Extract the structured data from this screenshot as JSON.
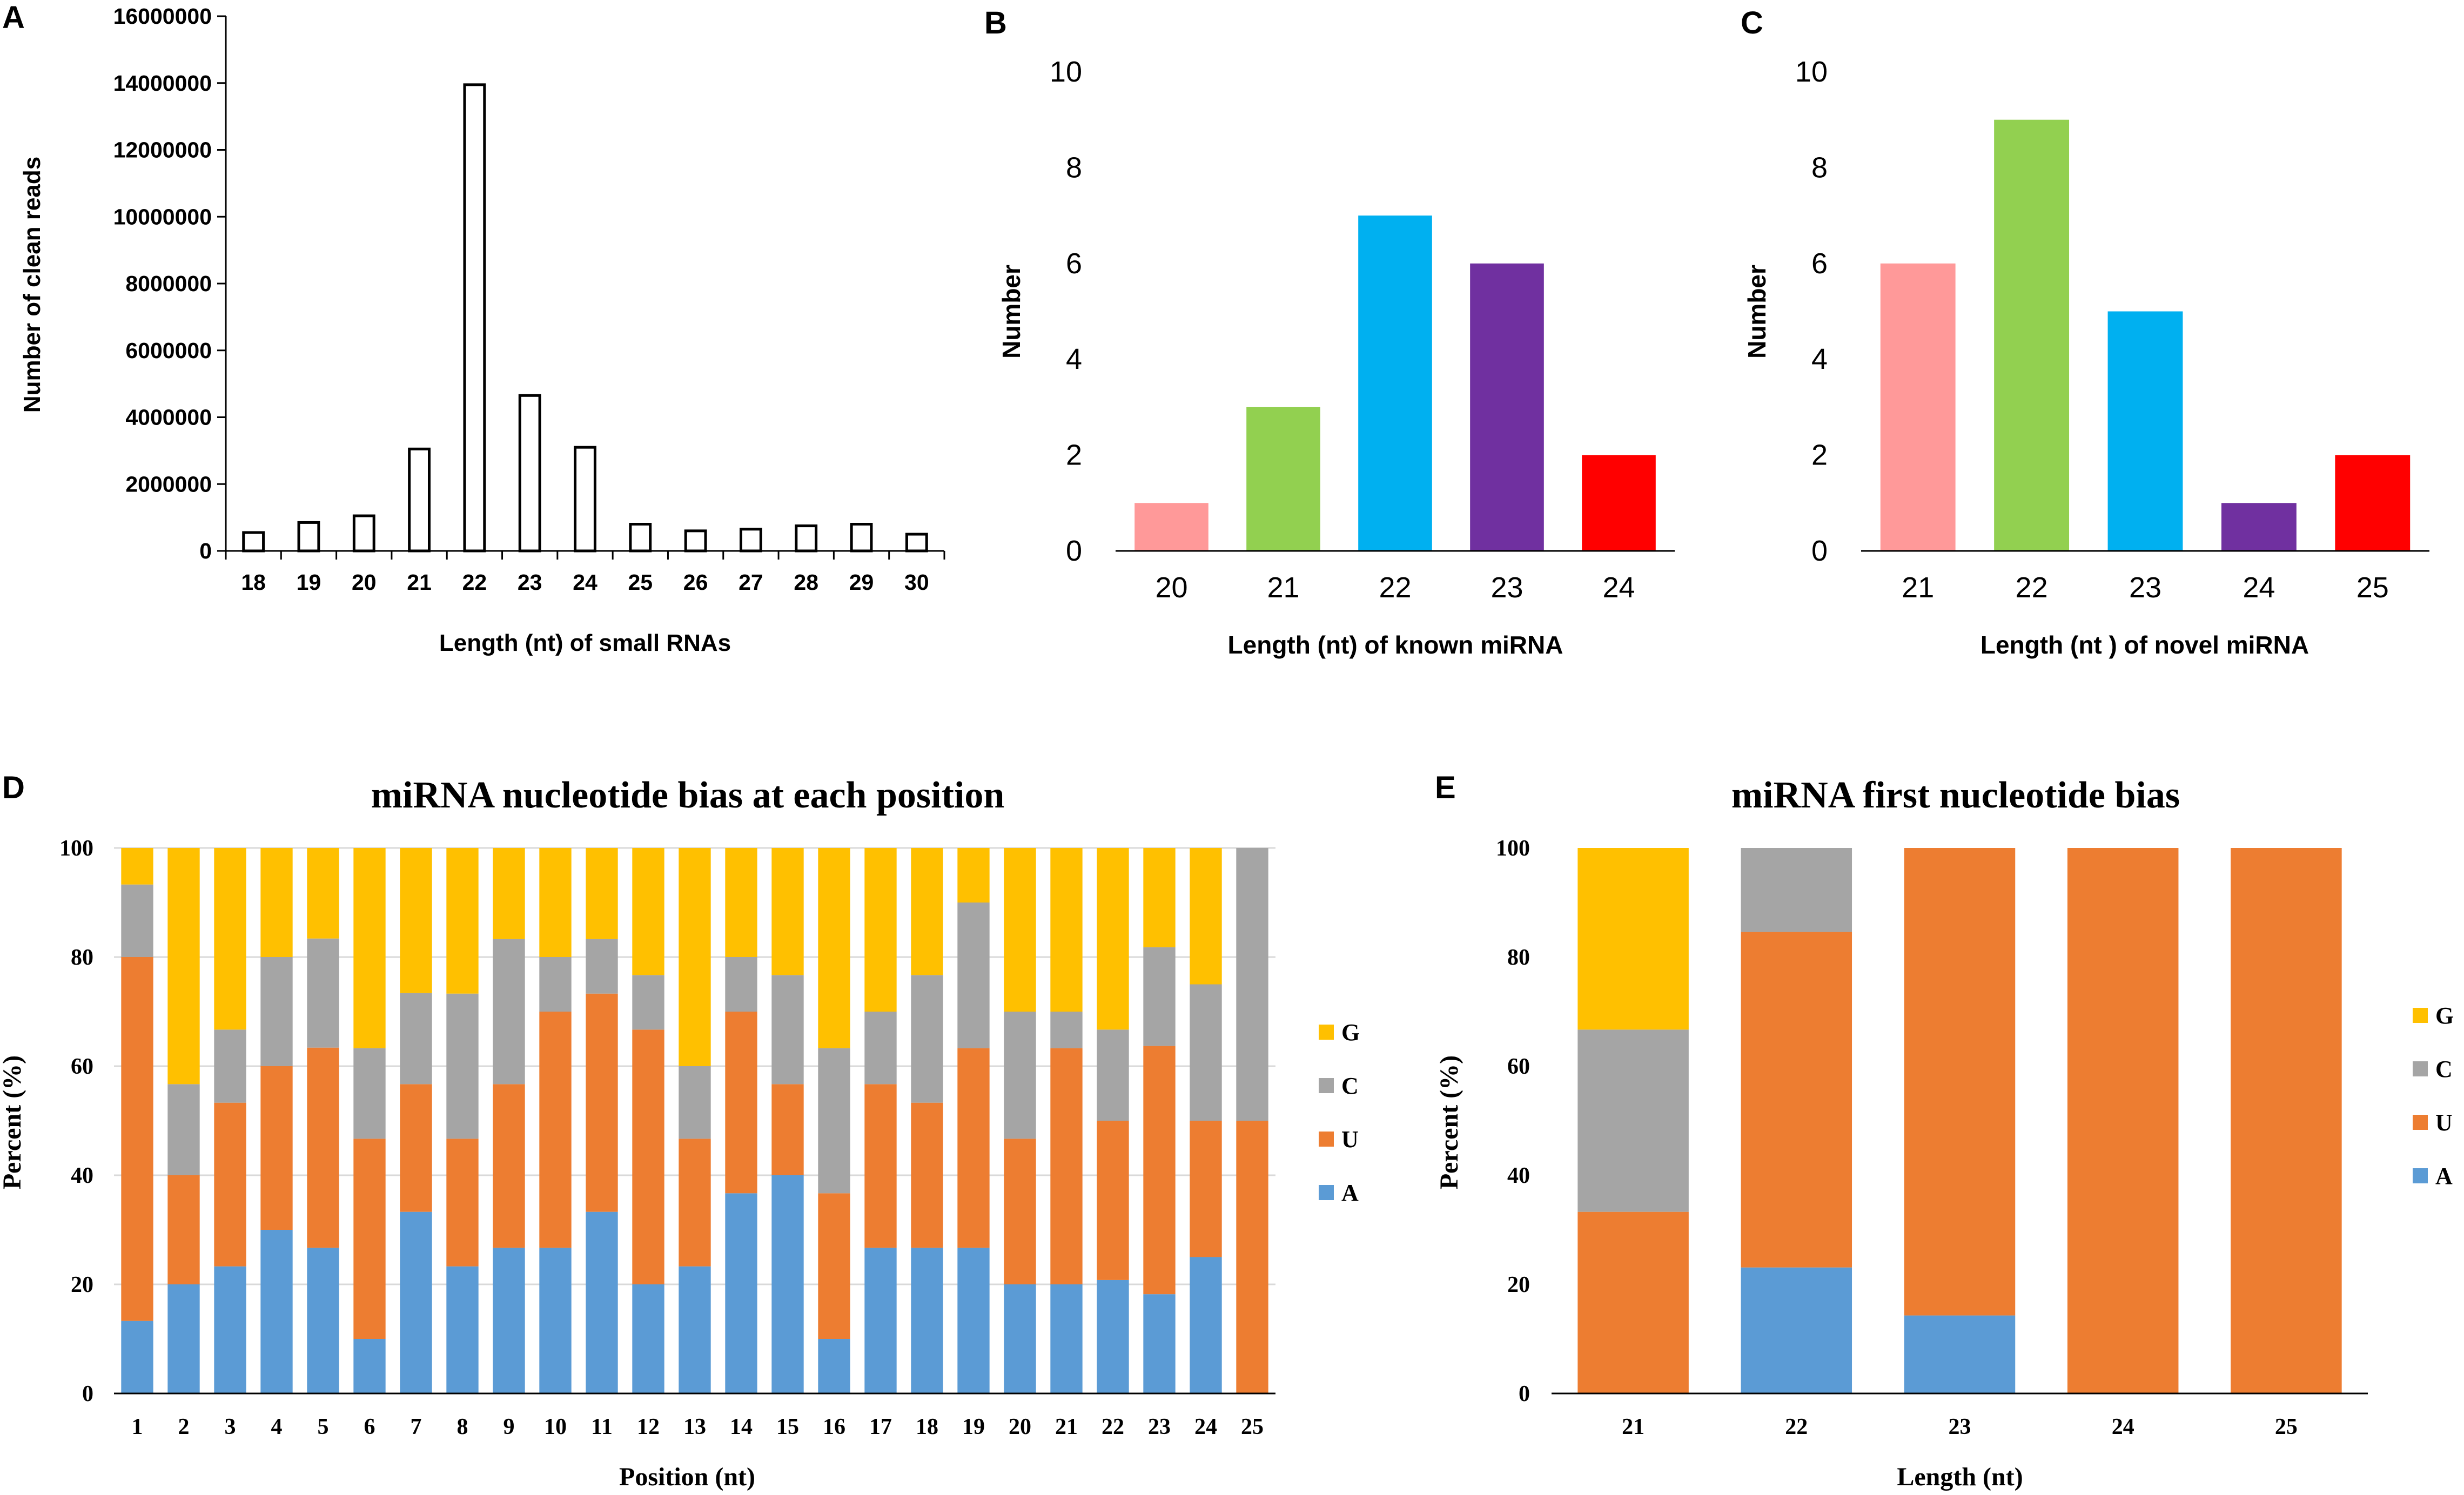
{
  "colors": {
    "pink": "#FF9999",
    "green": "#92D050",
    "cyan": "#00B0F0",
    "purple": "#7030A0",
    "red": "#FF0000",
    "nuc_G": "#FFC000",
    "nuc_C": "#A5A5A5",
    "nuc_U": "#ED7D31",
    "nuc_A": "#5B9BD5",
    "axis": "#000000",
    "grid": "#D9D9D9"
  },
  "panel_labels": [
    "A",
    "B",
    "C",
    "D",
    "E"
  ],
  "chart_data": [
    {
      "id": "A",
      "type": "bar",
      "style": "hollow",
      "title": "",
      "categories": [
        "18",
        "19",
        "20",
        "21",
        "22",
        "23",
        "24",
        "25",
        "26",
        "27",
        "28",
        "29",
        "30"
      ],
      "values": [
        550000,
        850000,
        1050000,
        3050000,
        13950000,
        4650000,
        3100000,
        800000,
        600000,
        650000,
        750000,
        800000,
        500000
      ],
      "ylim": [
        0,
        16000000
      ],
      "yticks": [
        "0",
        "2000000",
        "4000000",
        "6000000",
        "8000000",
        "10000000",
        "12000000",
        "14000000",
        "16000000"
      ],
      "xlabel": "Length (nt) of small RNAs",
      "ylabel": "Number of clean reads"
    },
    {
      "id": "B",
      "type": "bar",
      "title": "",
      "categories": [
        "20",
        "21",
        "22",
        "23",
        "24"
      ],
      "values": [
        1,
        3,
        7,
        6,
        2
      ],
      "bar_colors": [
        "pink",
        "green",
        "cyan",
        "purple",
        "red"
      ],
      "ylim": [
        0,
        10
      ],
      "yticks": [
        "0",
        "2",
        "4",
        "6",
        "8",
        "10"
      ],
      "xlabel": "Length (nt) of known miRNA",
      "ylabel": "Number"
    },
    {
      "id": "C",
      "type": "bar",
      "title": "",
      "categories": [
        "21",
        "22",
        "23",
        "24",
        "25"
      ],
      "values": [
        6,
        9,
        5,
        1,
        2
      ],
      "bar_colors": [
        "pink",
        "green",
        "cyan",
        "purple",
        "red"
      ],
      "ylim": [
        0,
        10
      ],
      "yticks": [
        "0",
        "2",
        "4",
        "6",
        "8",
        "10"
      ],
      "xlabel": "Length (nt ) of novel miRNA",
      "ylabel": "Number"
    },
    {
      "id": "D",
      "type": "bar",
      "stacked": true,
      "title": "miRNA nucleotide bias at each position",
      "categories": [
        "1",
        "2",
        "3",
        "4",
        "5",
        "6",
        "7",
        "8",
        "9",
        "10",
        "11",
        "12",
        "13",
        "14",
        "15",
        "16",
        "17",
        "18",
        "19",
        "20",
        "21",
        "22",
        "23",
        "24",
        "25"
      ],
      "series": [
        {
          "name": "A",
          "color_key": "nuc_A",
          "values": [
            13.3,
            20,
            23.3,
            30,
            26.7,
            10,
            33.3,
            23.3,
            26.7,
            26.7,
            33.3,
            20,
            23.3,
            36.7,
            40,
            10,
            26.7,
            26.7,
            26.7,
            20,
            20,
            20.8,
            18.2,
            25,
            0
          ]
        },
        {
          "name": "U",
          "color_key": "nuc_U",
          "values": [
            66.7,
            20,
            30,
            30,
            36.7,
            36.7,
            23.4,
            23.4,
            30,
            43.3,
            40,
            46.7,
            23.4,
            33.3,
            16.7,
            26.7,
            30,
            26.6,
            36.6,
            26.7,
            43.3,
            29.2,
            45.5,
            25,
            50
          ]
        },
        {
          "name": "C",
          "color_key": "nuc_C",
          "values": [
            13.3,
            16.7,
            13.4,
            20,
            20,
            16.6,
            16.7,
            26.6,
            26.6,
            10,
            10,
            10,
            13.3,
            10,
            20,
            26.6,
            13.3,
            23.4,
            26.7,
            23.3,
            6.7,
            16.7,
            18.1,
            25,
            50
          ]
        },
        {
          "name": "G",
          "color_key": "nuc_G",
          "values": [
            6.7,
            43.3,
            33.3,
            20,
            16.6,
            36.7,
            26.6,
            26.7,
            16.7,
            20,
            16.7,
            23.3,
            40,
            20,
            23.3,
            36.7,
            30,
            23.3,
            10,
            30,
            30,
            33.3,
            18.2,
            25,
            0
          ]
        }
      ],
      "legend": [
        "G",
        "C",
        "U",
        "A"
      ],
      "legend_position": "right",
      "ylim": [
        0,
        100
      ],
      "yticks": [
        "0",
        "20",
        "40",
        "60",
        "80",
        "100"
      ],
      "grid": true,
      "xlabel": "Position (nt)",
      "ylabel": "Percent (%)"
    },
    {
      "id": "E",
      "type": "bar",
      "stacked": true,
      "title": "miRNA first nucleotide bias",
      "categories": [
        "21",
        "22",
        "23",
        "24",
        "25"
      ],
      "series": [
        {
          "name": "A",
          "color_key": "nuc_A",
          "values": [
            0,
            23.1,
            14.3,
            0,
            0
          ]
        },
        {
          "name": "U",
          "color_key": "nuc_U",
          "values": [
            33.3,
            61.5,
            85.7,
            100,
            100
          ]
        },
        {
          "name": "C",
          "color_key": "nuc_C",
          "values": [
            33.4,
            15.4,
            0,
            0,
            0
          ]
        },
        {
          "name": "G",
          "color_key": "nuc_G",
          "values": [
            33.3,
            0,
            0,
            0,
            0
          ]
        }
      ],
      "legend": [
        "G",
        "C",
        "U",
        "A"
      ],
      "legend_position": "right",
      "ylim": [
        0,
        100
      ],
      "yticks": [
        "0",
        "20",
        "40",
        "60",
        "80",
        "100"
      ],
      "grid": false,
      "xlabel": "Length (nt)",
      "ylabel": "Percent (%)"
    }
  ]
}
